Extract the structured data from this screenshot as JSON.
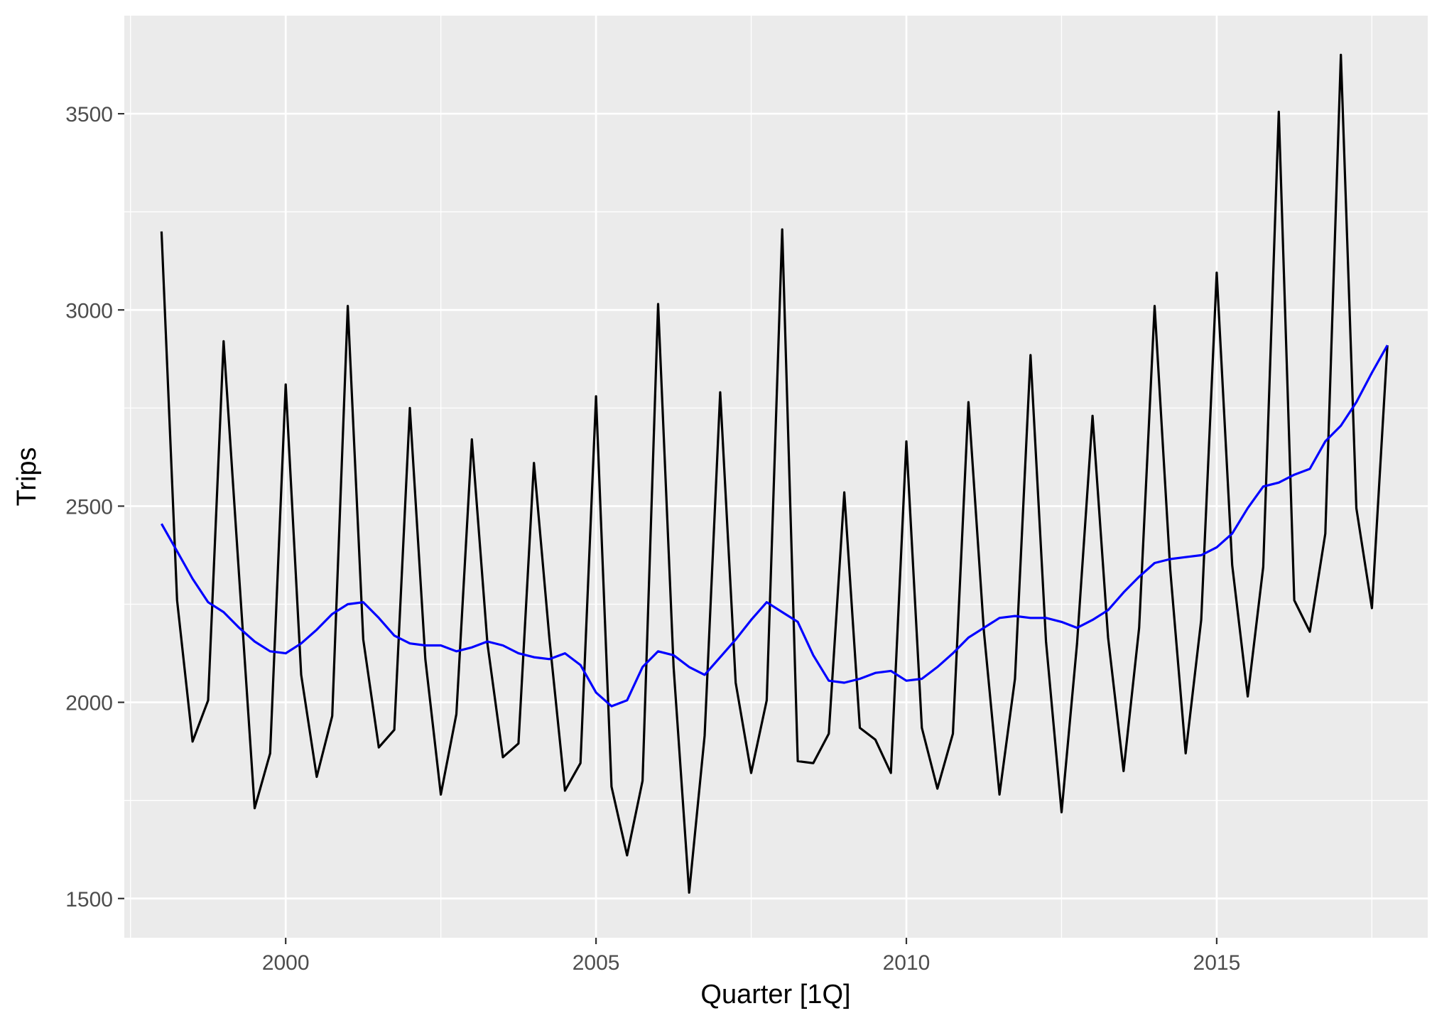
{
  "chart_data": {
    "type": "line",
    "title": "",
    "xlabel": "Quarter [1Q]",
    "ylabel": "Trips",
    "xlim": [
      1997.4,
      2018.4
    ],
    "ylim": [
      1400,
      3750
    ],
    "x_ticks": [
      2000,
      2005,
      2010,
      2015
    ],
    "x_tick_labels": [
      "2000",
      "2005",
      "2010",
      "2015"
    ],
    "y_ticks": [
      1500,
      2000,
      2500,
      3000,
      3500
    ],
    "y_tick_labels": [
      "1500",
      "2000",
      "2500",
      "3000",
      "3500"
    ],
    "grid": true,
    "legend": "none",
    "x": [
      1998.0,
      1998.25,
      1998.5,
      1998.75,
      1999.0,
      1999.25,
      1999.5,
      1999.75,
      2000.0,
      2000.25,
      2000.5,
      2000.75,
      2001.0,
      2001.25,
      2001.5,
      2001.75,
      2002.0,
      2002.25,
      2002.5,
      2002.75,
      2003.0,
      2003.25,
      2003.5,
      2003.75,
      2004.0,
      2004.25,
      2004.5,
      2004.75,
      2005.0,
      2005.25,
      2005.5,
      2005.75,
      2006.0,
      2006.25,
      2006.5,
      2006.75,
      2007.0,
      2007.25,
      2007.5,
      2007.75,
      2008.0,
      2008.25,
      2008.5,
      2008.75,
      2009.0,
      2009.25,
      2009.5,
      2009.75,
      2010.0,
      2010.25,
      2010.5,
      2010.75,
      2011.0,
      2011.25,
      2011.5,
      2011.75,
      2012.0,
      2012.25,
      2012.5,
      2012.75,
      2013.0,
      2013.25,
      2013.5,
      2013.75,
      2014.0,
      2014.25,
      2014.5,
      2014.75,
      2015.0,
      2015.25,
      2015.5,
      2015.75,
      2016.0,
      2016.25,
      2016.5,
      2016.75,
      2017.0,
      2017.25,
      2017.5,
      2017.75
    ],
    "series": [
      {
        "color": "#000000",
        "values": [
          3200,
          2260,
          1900,
          2005,
          2920,
          2320,
          1730,
          1870,
          2810,
          2070,
          1810,
          1965,
          3010,
          2160,
          1885,
          1930,
          2750,
          2110,
          1765,
          1970,
          2670,
          2150,
          1860,
          1895,
          2610,
          2160,
          1775,
          1845,
          2780,
          1785,
          1610,
          1800,
          3015,
          2090,
          1515,
          1915,
          2790,
          2050,
          1820,
          2005,
          3205,
          1850,
          1845,
          1920,
          2535,
          1935,
          1905,
          1820,
          2665,
          1935,
          1780,
          1920,
          2765,
          2180,
          1765,
          2060,
          2885,
          2155,
          1720,
          2150,
          2730,
          2165,
          1825,
          2190,
          3010,
          2340,
          1870,
          2210,
          3095,
          2350,
          2015,
          2345,
          3505,
          2260,
          2180,
          2430,
          3650,
          2495,
          2240,
          2910
        ]
      },
      {
        "color": "#0000ff",
        "values": [
          2455,
          2385,
          2315,
          2255,
          2230,
          2190,
          2155,
          2130,
          2125,
          2150,
          2185,
          2225,
          2250,
          2255,
          2215,
          2170,
          2150,
          2145,
          2145,
          2130,
          2140,
          2155,
          2145,
          2125,
          2115,
          2110,
          2125,
          2095,
          2025,
          1990,
          2005,
          2090,
          2130,
          2120,
          2090,
          2070,
          2115,
          2160,
          2210,
          2255,
          2230,
          2205,
          2120,
          2055,
          2050,
          2060,
          2075,
          2080,
          2055,
          2060,
          2090,
          2125,
          2165,
          2190,
          2215,
          2220,
          2215,
          2215,
          2205,
          2190,
          2210,
          2235,
          2280,
          2320,
          2355,
          2365,
          2370,
          2375,
          2395,
          2430,
          2495,
          2550,
          2560,
          2580,
          2595,
          2665,
          2705,
          2765,
          2840,
          2910
        ]
      }
    ]
  }
}
